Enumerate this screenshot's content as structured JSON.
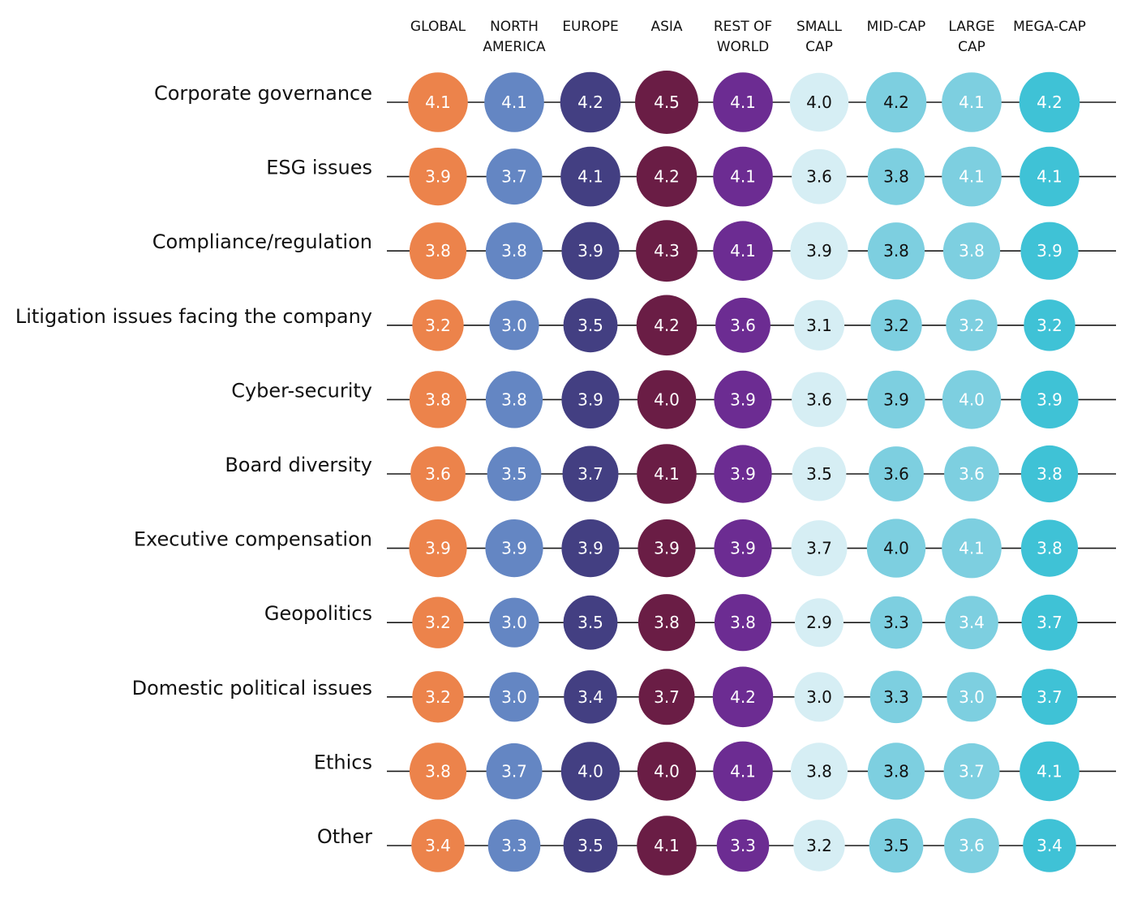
{
  "chart_data": {
    "type": "bubble-table",
    "title": "",
    "columns": [
      {
        "label": [
          "GLOBAL"
        ],
        "color": "#EC834B",
        "text_color": "#ffffff"
      },
      {
        "label": [
          "NORTH",
          "AMERICA"
        ],
        "color": "#6486C3",
        "text_color": "#ffffff"
      },
      {
        "label": [
          "EUROPE"
        ],
        "color": "#433F82",
        "text_color": "#ffffff"
      },
      {
        "label": [
          "ASIA"
        ],
        "color": "#6A1D45",
        "text_color": "#ffffff"
      },
      {
        "label": [
          "REST OF",
          "WORLD"
        ],
        "color": "#6C2C92",
        "text_color": "#ffffff"
      },
      {
        "label": [
          "SMALL",
          "CAP"
        ],
        "color": "#D6EEF4",
        "text_color": "#111111"
      },
      {
        "label": [
          "MID-CAP"
        ],
        "color": "#7DCFE0",
        "text_color": "#111111"
      },
      {
        "label": [
          "LARGE",
          "CAP"
        ],
        "color": "#7DCFE0",
        "text_color": "#ffffff"
      },
      {
        "label": [
          "MEGA-CAP"
        ],
        "color": "#3FC2D6",
        "text_color": "#ffffff"
      }
    ],
    "rows": [
      {
        "label": "Corporate governance",
        "values": [
          4.1,
          4.1,
          4.2,
          4.5,
          4.1,
          4.0,
          4.2,
          4.1,
          4.2
        ]
      },
      {
        "label": "ESG issues",
        "values": [
          3.9,
          3.7,
          4.1,
          4.2,
          4.1,
          3.6,
          3.8,
          4.1,
          4.1
        ]
      },
      {
        "label": "Compliance/regulation",
        "values": [
          3.8,
          3.8,
          3.9,
          4.3,
          4.1,
          3.9,
          3.8,
          3.8,
          3.9
        ]
      },
      {
        "label": "Litigation issues facing the company",
        "values": [
          3.2,
          3.0,
          3.5,
          4.2,
          3.6,
          3.1,
          3.2,
          3.2,
          3.2
        ]
      },
      {
        "label": "Cyber-security",
        "values": [
          3.8,
          3.8,
          3.9,
          4.0,
          3.9,
          3.6,
          3.9,
          4.0,
          3.9
        ]
      },
      {
        "label": "Board diversity",
        "values": [
          3.6,
          3.5,
          3.7,
          4.1,
          3.9,
          3.5,
          3.6,
          3.6,
          3.8
        ]
      },
      {
        "label": "Executive compensation",
        "values": [
          3.9,
          3.9,
          3.9,
          3.9,
          3.9,
          3.7,
          4.0,
          4.1,
          3.8
        ]
      },
      {
        "label": "Geopolitics",
        "values": [
          3.2,
          3.0,
          3.5,
          3.8,
          3.8,
          2.9,
          3.3,
          3.4,
          3.7
        ]
      },
      {
        "label": "Domestic political issues",
        "values": [
          3.2,
          3.0,
          3.4,
          3.7,
          4.2,
          3.0,
          3.3,
          3.0,
          3.7
        ]
      },
      {
        "label": "Ethics",
        "values": [
          3.8,
          3.7,
          4.0,
          4.0,
          4.1,
          3.8,
          3.8,
          3.7,
          4.1
        ]
      },
      {
        "label": "Other",
        "values": [
          3.4,
          3.3,
          3.5,
          4.1,
          3.3,
          3.2,
          3.5,
          3.6,
          3.4
        ]
      }
    ]
  }
}
